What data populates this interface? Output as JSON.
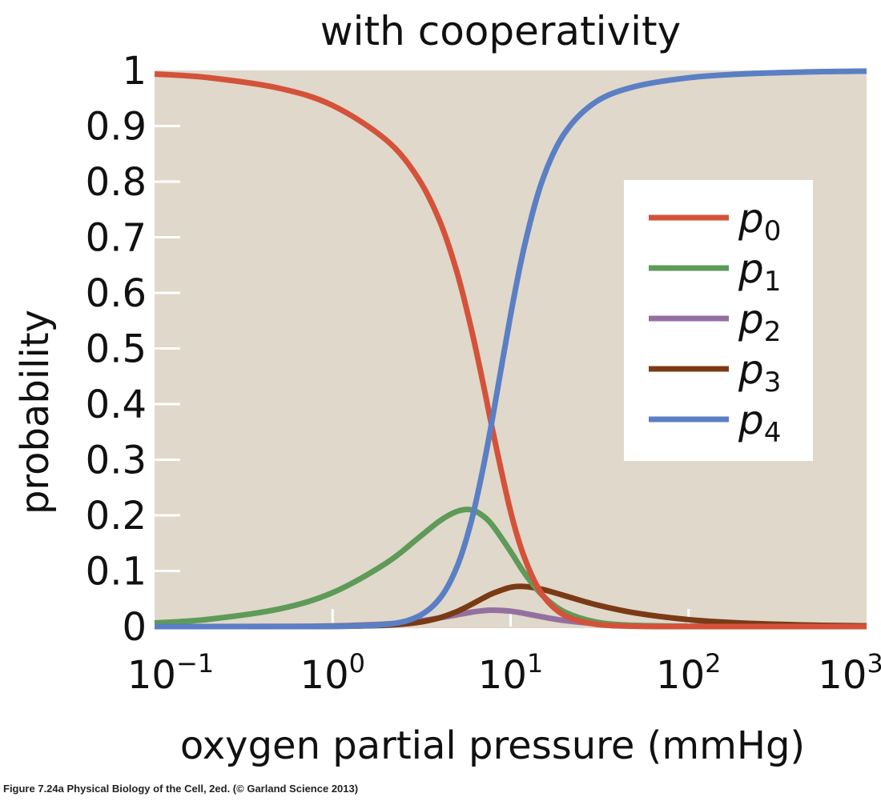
{
  "chart_data": {
    "type": "line",
    "title": "with cooperativity",
    "xlabel": "oxygen partial pressure (mmHg)",
    "ylabel": "probability",
    "xscale": "log",
    "xlim": [
      0.1,
      1000
    ],
    "ylim": [
      0,
      1
    ],
    "xticks": [
      {
        "base": "10",
        "exp": "−1",
        "value": 0.1
      },
      {
        "base": "10",
        "exp": "0",
        "value": 1
      },
      {
        "base": "10",
        "exp": "1",
        "value": 10
      },
      {
        "base": "10",
        "exp": "2",
        "value": 100
      },
      {
        "base": "10",
        "exp": "3",
        "value": 1000
      }
    ],
    "yticks": [
      {
        "label": "0",
        "value": 0
      },
      {
        "label": "0.1",
        "value": 0.1
      },
      {
        "label": "0.2",
        "value": 0.2
      },
      {
        "label": "0.3",
        "value": 0.3
      },
      {
        "label": "0.4",
        "value": 0.4
      },
      {
        "label": "0.5",
        "value": 0.5
      },
      {
        "label": "0.6",
        "value": 0.6
      },
      {
        "label": "0.7",
        "value": 0.7
      },
      {
        "label": "0.8",
        "value": 0.8
      },
      {
        "label": "0.9",
        "value": 0.9
      },
      {
        "label": "1",
        "value": 1
      }
    ],
    "legend_position": "right",
    "background_color": "#e0d8ca",
    "x": [
      0.1,
      0.2,
      0.5,
      1,
      2,
      3,
      4,
      5,
      6,
      7,
      8,
      10,
      12,
      15,
      20,
      30,
      50,
      100,
      200,
      500,
      1000
    ],
    "series": [
      {
        "name": "p",
        "sub": "0",
        "color": "#d4523a",
        "values": [
          0.9935,
          0.987,
          0.968,
          0.937,
          0.875,
          0.808,
          0.729,
          0.637,
          0.537,
          0.438,
          0.347,
          0.207,
          0.123,
          0.0585,
          0.0205,
          0.0043,
          0.0006,
          0,
          0,
          0,
          0
        ]
      },
      {
        "name": "p",
        "sub": "1",
        "color": "#5e9a58",
        "values": [
          0.0065,
          0.013,
          0.0315,
          0.061,
          0.114,
          0.158,
          0.19,
          0.207,
          0.21,
          0.199,
          0.18,
          0.135,
          0.0956,
          0.057,
          0.0267,
          0.0084,
          0.0019,
          0.0002,
          0,
          0,
          0
        ]
      },
      {
        "name": "p",
        "sub": "2",
        "color": "#9470a0",
        "values": [
          0,
          0,
          0.0003,
          0.0012,
          0.0047,
          0.0097,
          0.0155,
          0.0212,
          0.0257,
          0.0285,
          0.0295,
          0.0276,
          0.0235,
          0.0175,
          0.0109,
          0.0052,
          0.0019,
          0.0005,
          0.0001,
          0,
          0
        ]
      },
      {
        "name": "p",
        "sub": "3",
        "color": "#7a3a16",
        "values": [
          0,
          0,
          0,
          0.0003,
          0.0024,
          0.0074,
          0.0159,
          0.0271,
          0.0395,
          0.051,
          0.06,
          0.0705,
          0.072,
          0.0671,
          0.0558,
          0.0396,
          0.0245,
          0.0124,
          0.0063,
          0.0025,
          0.0013
        ]
      },
      {
        "name": "p",
        "sub": "4",
        "color": "#5a7fc4",
        "values": [
          0,
          0,
          0,
          0.0003,
          0.0038,
          0.0177,
          0.0504,
          0.1075,
          0.188,
          0.284,
          0.383,
          0.56,
          0.686,
          0.8,
          0.886,
          0.943,
          0.971,
          0.9868,
          0.9936,
          0.9975,
          0.9987
        ]
      }
    ]
  },
  "caption": "Figure 7.24a  Physical Biology of the Cell, 2ed. (© Garland Science 2013)"
}
